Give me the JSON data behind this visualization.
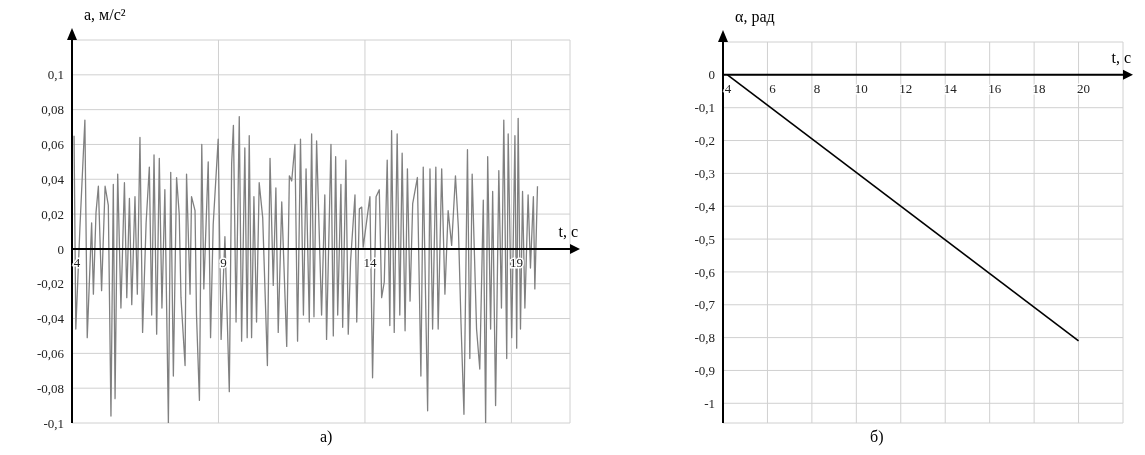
{
  "chart_data": [
    {
      "type": "line",
      "ylabel": "a, м/с²",
      "xlabel": "t, с",
      "x": [
        4.07,
        4.13,
        4.27,
        4.44,
        4.52,
        4.67,
        4.73,
        4.82,
        4.9,
        5.01,
        5.13,
        5.24,
        5.33,
        5.41,
        5.47,
        5.56,
        5.67,
        5.79,
        5.87,
        5.96,
        6.04,
        6.15,
        6.23,
        6.32,
        6.41,
        6.53,
        6.64,
        6.72,
        6.8,
        6.89,
        6.98,
        7.07,
        7.17,
        7.29,
        7.37,
        7.46,
        7.57,
        7.66,
        7.72,
        7.86,
        7.91,
        8.03,
        8.08,
        8.2,
        8.25,
        8.35,
        8.43,
        8.5,
        8.65,
        8.73,
        8.82,
        8.99,
        9.09,
        9.22,
        9.37,
        9.45,
        9.51,
        9.6,
        9.71,
        9.79,
        9.9,
        9.98,
        10.05,
        10.13,
        10.21,
        10.3,
        10.39,
        10.51,
        10.67,
        10.76,
        10.87,
        10.96,
        11.04,
        11.16,
        11.33,
        11.42,
        11.5,
        11.61,
        11.7,
        11.8,
        11.9,
        11.99,
        12.1,
        12.18,
        12.26,
        12.35,
        12.52,
        12.63,
        12.69,
        12.84,
        12.92,
        13.0,
        13.07,
        13.18,
        13.24,
        13.35,
        13.43,
        13.51,
        13.66,
        13.72,
        13.81,
        13.89,
        13.94,
        14.17,
        14.26,
        14.38,
        14.49,
        14.57,
        14.66,
        14.76,
        14.85,
        14.91,
        15.0,
        15.1,
        15.19,
        15.27,
        15.37,
        15.45,
        15.54,
        15.63,
        15.79,
        15.91,
        15.99,
        16.14,
        16.22,
        16.31,
        16.42,
        16.5,
        16.62,
        16.73,
        16.84,
        16.96,
        17.09,
        17.19,
        17.28,
        17.38,
        17.5,
        17.58,
        17.66,
        17.81,
        17.92,
        18.04,
        18.12,
        18.19,
        18.29,
        18.36,
        18.46,
        18.57,
        18.66,
        18.74,
        18.84,
        18.89,
        19.01,
        19.12,
        19.18,
        19.23,
        19.31,
        19.38,
        19.46,
        19.57,
        19.65,
        19.75,
        19.8,
        19.89
      ],
      "series": [
        {
          "color": "#808080",
          "values": [
            0.065,
            -0.046,
            0.012,
            0.074,
            -0.051,
            0.015,
            -0.026,
            0.021,
            0.036,
            -0.024,
            0.036,
            0.025,
            -0.096,
            0.037,
            -0.086,
            0.043,
            -0.034,
            0.038,
            -0.028,
            0.029,
            -0.032,
            0.03,
            -0.026,
            0.064,
            -0.048,
            0.015,
            0.047,
            -0.038,
            0.054,
            -0.049,
            0.052,
            -0.034,
            0.034,
            -0.1,
            0.044,
            -0.073,
            0.041,
            0.02,
            -0.028,
            -0.067,
            0.043,
            -0.026,
            0.03,
            0.022,
            -0.038,
            -0.087,
            0.06,
            -0.023,
            0.05,
            -0.051,
            0.014,
            0.063,
            -0.052,
            0.007,
            -0.082,
            0.049,
            0.071,
            -0.042,
            0.076,
            -0.053,
            0.058,
            -0.051,
            0.065,
            -0.051,
            0.03,
            -0.042,
            0.038,
            0.018,
            -0.067,
            0.052,
            -0.021,
            0.035,
            -0.048,
            0.027,
            -0.056,
            0.042,
            0.039,
            0.06,
            -0.053,
            0.063,
            -0.038,
            0.046,
            -0.042,
            0.066,
            -0.039,
            0.062,
            -0.038,
            0.031,
            -0.052,
            0.06,
            -0.05,
            0.053,
            -0.038,
            0.037,
            -0.045,
            0.051,
            -0.049,
            -0.007,
            0.031,
            -0.042,
            0.023,
            0.024,
            0.001,
            0.03,
            -0.074,
            0.03,
            0.034,
            -0.028,
            -0.019,
            0.051,
            -0.044,
            0.068,
            -0.048,
            0.066,
            -0.038,
            0.055,
            -0.047,
            0.046,
            -0.03,
            0.026,
            0.041,
            -0.073,
            0.047,
            -0.093,
            0.046,
            -0.046,
            0.047,
            -0.046,
            0.046,
            -0.026,
            0.022,
            0.002,
            0.042,
            0.012,
            -0.043,
            -0.095,
            0.057,
            -0.063,
            0.043,
            -0.046,
            -0.069,
            0.028,
            -0.1,
            0.053,
            -0.046,
            0.033,
            -0.09,
            0.045,
            -0.034,
            0.074,
            -0.063,
            0.066,
            -0.051,
            0.065,
            -0.057,
            0.075,
            -0.046,
            0.033,
            -0.034,
            0.031,
            -0.011,
            0.03,
            -0.023,
            0.036
          ]
        }
      ],
      "xlim": [
        4,
        21
      ],
      "xticks": [
        4,
        9,
        14,
        19
      ],
      "ylim": [
        -0.1,
        0.12
      ],
      "yticks": [
        {
          "value": 0.1,
          "label": "0,1"
        },
        {
          "value": 0.08,
          "label": "0,08"
        },
        {
          "value": 0.06,
          "label": "0,06"
        },
        {
          "value": 0.04,
          "label": "0,04"
        },
        {
          "value": 0.02,
          "label": "0,02"
        },
        {
          "value": 0,
          "label": "0"
        },
        {
          "value": -0.02,
          "label": "-0,02"
        },
        {
          "value": -0.04,
          "label": "-0,04"
        },
        {
          "value": -0.06,
          "label": "-0,06"
        },
        {
          "value": -0.08,
          "label": "-0,08"
        },
        {
          "value": -0.1,
          "label": "-0,1"
        }
      ],
      "grid": true,
      "annotations": [
        "а)"
      ]
    },
    {
      "type": "line",
      "ylabel": "α, рад",
      "xlabel": "t, с",
      "x": [
        4.2,
        20
      ],
      "series": [
        {
          "color": "#000000",
          "values": [
            0,
            -0.81
          ]
        }
      ],
      "xlim": [
        4,
        22
      ],
      "xticks": [
        4,
        6,
        8,
        10,
        12,
        14,
        16,
        18,
        20
      ],
      "ylim": [
        -1.06,
        0.1
      ],
      "yticks": [
        {
          "value": 0,
          "label": "0"
        },
        {
          "value": -0.1,
          "label": "-0,1"
        },
        {
          "value": -0.2,
          "label": "-0,2"
        },
        {
          "value": -0.3,
          "label": "-0,3"
        },
        {
          "value": -0.4,
          "label": "-0,4"
        },
        {
          "value": -0.5,
          "label": "-0,5"
        },
        {
          "value": -0.6,
          "label": "-0,6"
        },
        {
          "value": -0.7,
          "label": "-0,7"
        },
        {
          "value": -0.8,
          "label": "-0,8"
        },
        {
          "value": -0.9,
          "label": "-0,9"
        },
        {
          "value": -1,
          "label": "-1"
        }
      ],
      "grid": true,
      "annotations": [
        "б)"
      ]
    }
  ]
}
